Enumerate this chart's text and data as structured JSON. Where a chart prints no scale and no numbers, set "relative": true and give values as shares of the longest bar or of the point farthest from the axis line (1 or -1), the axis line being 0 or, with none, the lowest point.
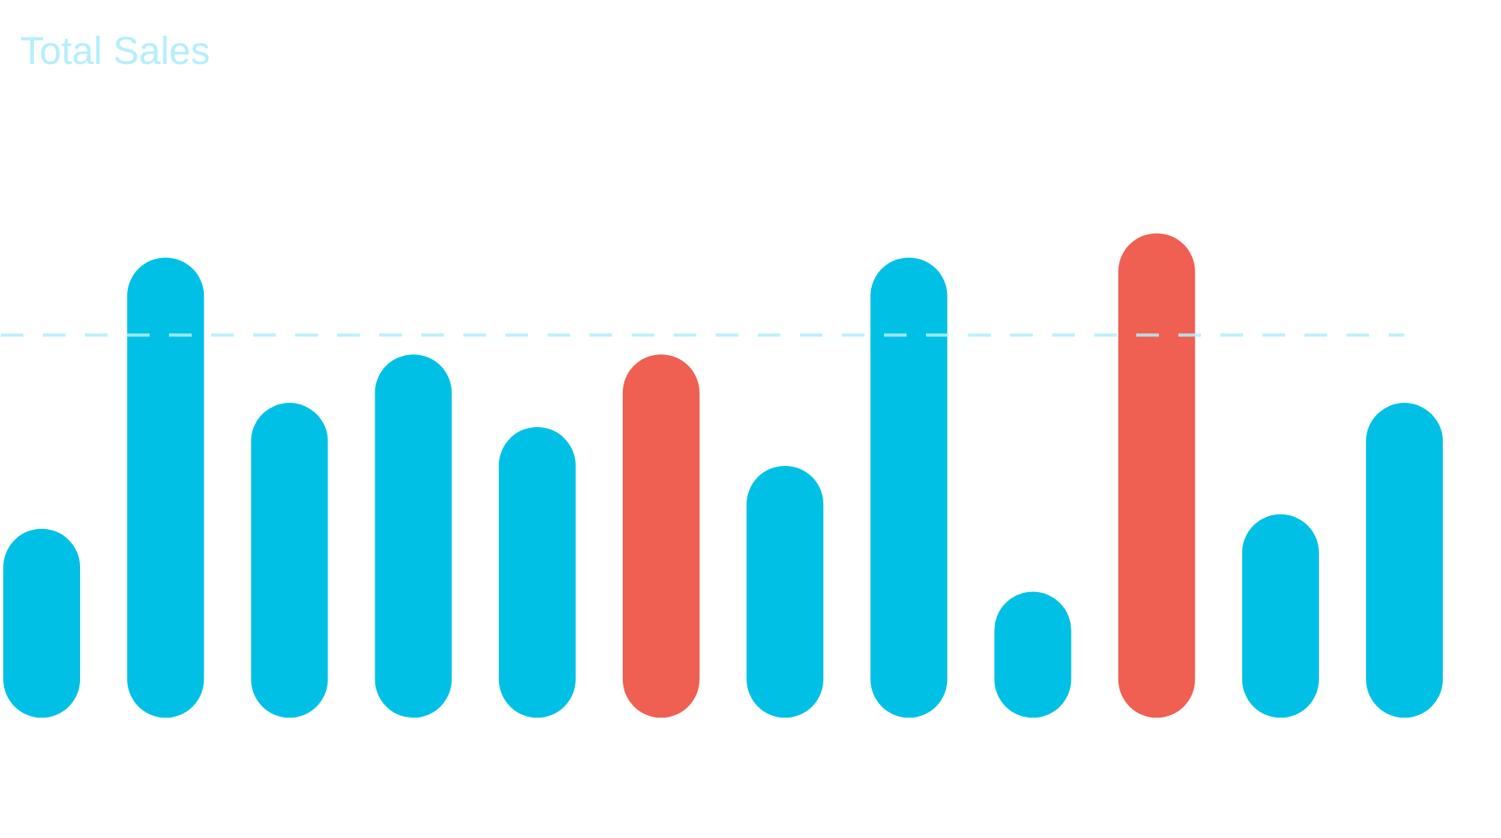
{
  "chart_data": {
    "type": "bar",
    "title": "Total Sales",
    "categories": [
      null,
      null,
      null,
      null,
      null,
      null,
      null,
      null,
      null,
      null,
      null,
      null
    ],
    "values": [
      0.39,
      0.95,
      0.65,
      0.75,
      0.6,
      0.75,
      0.52,
      0.95,
      0.26,
      1,
      0.42,
      0.65
    ],
    "colors": [
      "#00c0e6",
      "#00c0e6",
      "#00c0e6",
      "#00c0e6",
      "#00c0e6",
      "#ef5f52",
      "#00c0e6",
      "#00c0e6",
      "#00c0e6",
      "#ef5f52",
      "#00c0e6",
      "#00c0e6"
    ],
    "relative": true,
    "ref_lines": [
      {
        "axis": "y",
        "value": 0.79,
        "color": "#b3eef9",
        "line_style": "dashed"
      }
    ],
    "tick_labels": false
  }
}
